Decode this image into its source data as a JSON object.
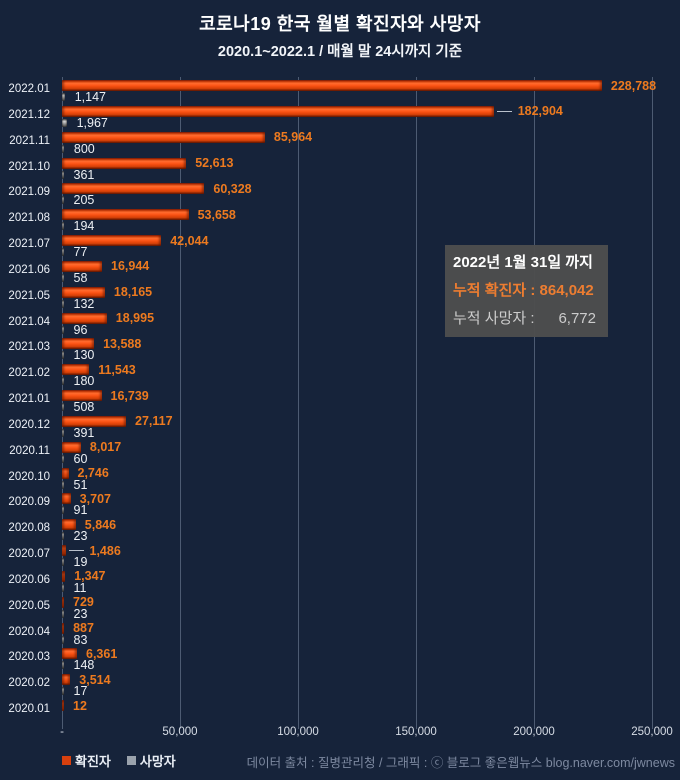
{
  "chart_data": {
    "type": "bar",
    "orientation": "horizontal",
    "title": "코로나19 한국 월별 확진자와 사망자",
    "subtitle": "2020.1~2022.1 / 매월 말 24시까지 기준",
    "categories": [
      "2022.01",
      "2021.12",
      "2021.11",
      "2021.10",
      "2021.09",
      "2021.08",
      "2021.07",
      "2021.06",
      "2021.05",
      "2021.04",
      "2021.03",
      "2021.02",
      "2021.01",
      "2020.12",
      "2020.11",
      "2020.10",
      "2020.09",
      "2020.08",
      "2020.07",
      "2020.06",
      "2020.05",
      "2020.04",
      "2020.03",
      "2020.02",
      "2020.01"
    ],
    "series": [
      {
        "name": "확진자",
        "color": "#f04a0e",
        "values": [
          228788,
          182904,
          85964,
          52613,
          60328,
          53658,
          42044,
          16944,
          18165,
          18995,
          13588,
          11543,
          16739,
          27117,
          8017,
          2746,
          3707,
          5846,
          1486,
          1347,
          729,
          887,
          6361,
          3514,
          12
        ]
      },
      {
        "name": "사망자",
        "color": "#a6a6a6",
        "values": [
          1147,
          1967,
          800,
          361,
          205,
          194,
          77,
          58,
          132,
          96,
          130,
          180,
          508,
          391,
          60,
          51,
          91,
          23,
          19,
          11,
          23,
          83,
          148,
          17,
          null
        ]
      }
    ],
    "xlim": [
      0,
      250000
    ],
    "x_ticks": [
      "-",
      "50,000",
      "100,000",
      "150,000",
      "200,000",
      "250,000"
    ],
    "leader_line_months": [
      "2021.12",
      "2020.07"
    ],
    "grid": true,
    "legend_position": "bottom-left"
  },
  "annotation_box": {
    "title": "2022년 1월 31일 까지",
    "confirmed_label": "누적 확진자 :",
    "confirmed_value": "864,042",
    "deaths_label": "누적 사망자 :",
    "deaths_value": "6,772"
  },
  "legend": {
    "items": [
      {
        "label": "확진자",
        "color": "#d7400e"
      },
      {
        "label": "사망자",
        "color": "#9aa2ac"
      }
    ]
  },
  "footer": {
    "source_text": "데이터 출처 : 질병관리청 / 그래픽 : ⓒ 블로그 좋은웹뉴스 blog.naver.com/jwnews"
  },
  "colors": {
    "background": "#16233a",
    "gridline": "#4d5b72",
    "confirmed_bar": "#f04a0e",
    "deaths_bar": "#a6a6a6",
    "confirmed_label": "#ed7a1f",
    "deaths_label": "#edf0f4",
    "annotation_bg": "#4d4d4d",
    "annotation_accent": "#ed7d31"
  }
}
